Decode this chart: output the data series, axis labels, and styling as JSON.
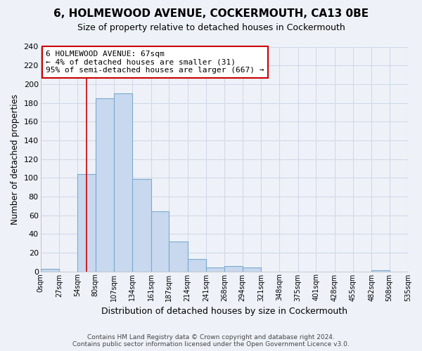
{
  "title": "6, HOLMEWOOD AVENUE, COCKERMOUTH, CA13 0BE",
  "subtitle": "Size of property relative to detached houses in Cockermouth",
  "xlabel": "Distribution of detached houses by size in Cockermouth",
  "ylabel": "Number of detached properties",
  "bar_edges": [
    0,
    27,
    54,
    80,
    107,
    134,
    161,
    187,
    214,
    241,
    268,
    294,
    321,
    348,
    375,
    401,
    428,
    455,
    482,
    508,
    535
  ],
  "bar_heights": [
    3,
    0,
    104,
    185,
    190,
    99,
    64,
    32,
    13,
    4,
    6,
    4,
    0,
    0,
    0,
    0,
    0,
    0,
    1,
    0
  ],
  "bar_color": "#c8d8ee",
  "bar_edge_color": "#7aabcf",
  "property_line_x": 67,
  "property_line_color": "#cc0000",
  "annotation_text": "6 HOLMEWOOD AVENUE: 67sqm\n← 4% of detached houses are smaller (31)\n95% of semi-detached houses are larger (667) →",
  "annotation_box_edge_color": "#cc0000",
  "xlim": [
    0,
    535
  ],
  "ylim": [
    0,
    240
  ],
  "yticks": [
    0,
    20,
    40,
    60,
    80,
    100,
    120,
    140,
    160,
    180,
    200,
    220,
    240
  ],
  "xtick_labels": [
    "0sqm",
    "27sqm",
    "54sqm",
    "80sqm",
    "107sqm",
    "134sqm",
    "161sqm",
    "187sqm",
    "214sqm",
    "241sqm",
    "268sqm",
    "294sqm",
    "321sqm",
    "348sqm",
    "375sqm",
    "401sqm",
    "428sqm",
    "455sqm",
    "482sqm",
    "508sqm",
    "535sqm"
  ],
  "xtick_positions": [
    0,
    27,
    54,
    80,
    107,
    134,
    161,
    187,
    214,
    241,
    268,
    294,
    321,
    348,
    375,
    401,
    428,
    455,
    482,
    508,
    535
  ],
  "footer_text": "Contains HM Land Registry data © Crown copyright and database right 2024.\nContains public sector information licensed under the Open Government Licence v3.0.",
  "grid_color": "#d0d8e8",
  "background_color": "#eef2f8"
}
